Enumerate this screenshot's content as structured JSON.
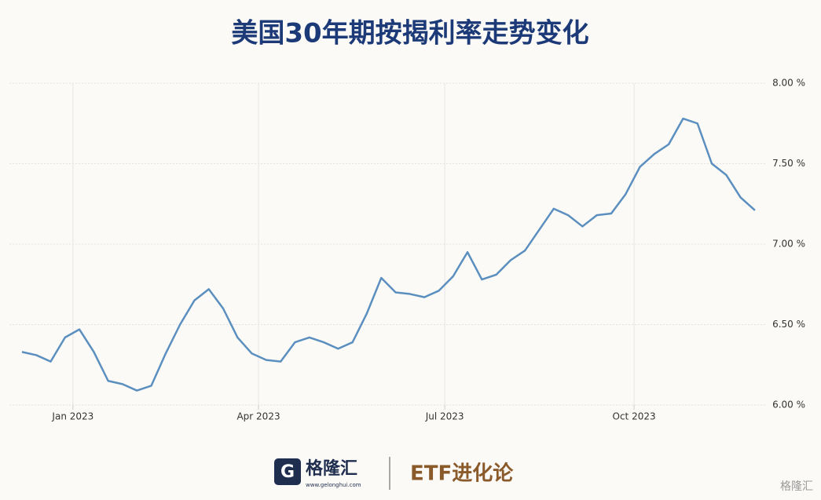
{
  "chart_data": {
    "type": "line",
    "title": "美国30年期按揭利率走势变化",
    "x": [
      0,
      1,
      2,
      3,
      4,
      5,
      6,
      7,
      8,
      9,
      10,
      11,
      12,
      13,
      14,
      15,
      16,
      17,
      18,
      19,
      20,
      21,
      22,
      23,
      24,
      25,
      26,
      27,
      28,
      29,
      30,
      31,
      32,
      33,
      34,
      35,
      36,
      37,
      38,
      39,
      40,
      41,
      42,
      43,
      44,
      45,
      46,
      47,
      48,
      49,
      50,
      51
    ],
    "series": [
      {
        "name": "30年期按揭利率",
        "color": "#5b8fbf",
        "values": [
          6.33,
          6.31,
          6.27,
          6.42,
          6.47,
          6.33,
          6.15,
          6.13,
          6.09,
          6.12,
          6.32,
          6.5,
          6.65,
          6.72,
          6.6,
          6.42,
          6.32,
          6.28,
          6.27,
          6.39,
          6.42,
          6.39,
          6.35,
          6.39,
          6.57,
          6.79,
          6.7,
          6.69,
          6.67,
          6.71,
          6.8,
          6.95,
          6.78,
          6.81,
          6.9,
          6.96,
          7.09,
          7.22,
          7.18,
          7.11,
          7.18,
          7.19,
          7.31,
          7.48,
          7.56,
          7.62,
          7.78,
          7.75,
          7.5,
          7.43,
          7.29,
          7.21
        ]
      }
    ],
    "xlim": [
      -0.87,
      51.77
    ],
    "xticks": [
      {
        "value": 3.55,
        "label": "Jan 2023"
      },
      {
        "value": 16.46,
        "label": "Apr 2023"
      },
      {
        "value": 29.42,
        "label": "Jul 2023"
      },
      {
        "value": 42.59,
        "label": "Oct 2023"
      }
    ],
    "ylim": [
      6,
      8
    ],
    "yticks": [
      {
        "value": 6,
        "label": "6.00 %"
      },
      {
        "value": 6.5,
        "label": "6.50 %"
      },
      {
        "value": 7,
        "label": "7.00 %"
      },
      {
        "value": 7.5,
        "label": "7.50 %"
      },
      {
        "value": 8,
        "label": "8.00 %"
      }
    ],
    "grid": true
  },
  "footer": {
    "logo": "格隆汇",
    "url": "www.gelonghui.com",
    "brand": "ETF进化论",
    "watermark": "格隆汇"
  }
}
